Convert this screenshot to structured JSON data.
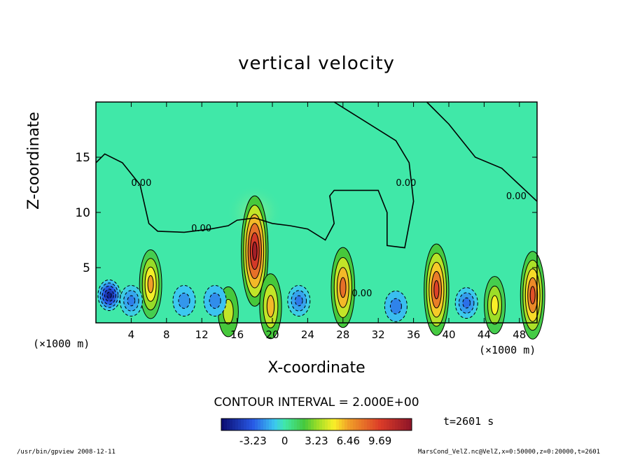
{
  "chart_data": {
    "type": "heatmap",
    "title": "vertical velocity",
    "xlabel": "X-coordinate",
    "ylabel": "Z-coordinate",
    "x_unit_label_left": "(×1000 m)",
    "x_unit_label_right": "(×1000 m)",
    "xlim": [
      0,
      50
    ],
    "ylim": [
      0,
      20
    ],
    "x_ticks": [
      4,
      8,
      12,
      16,
      20,
      24,
      28,
      32,
      36,
      40,
      44,
      48
    ],
    "y_ticks": [
      5,
      10,
      15
    ],
    "contour_interval_text": "CONTOUR INTERVAL = 2.000E+00",
    "contour_labels": [
      "0.00",
      "0.00",
      "0.00",
      "0.00",
      "0.00"
    ],
    "colorbar": {
      "tick_labels": [
        "-3.23",
        "0",
        "3.23",
        "6.46",
        "9.69"
      ],
      "tick_values": [
        -3.23,
        0,
        3.23,
        6.46,
        9.69
      ],
      "range": [
        -6.46,
        12.92
      ]
    },
    "time_label": "t=2601 s",
    "cells": [
      {
        "x": 1.5,
        "z": 2.5,
        "v": -5.5
      },
      {
        "x": 6.2,
        "z": 3.5,
        "v": 6.5
      },
      {
        "x": 18.0,
        "z": 6.5,
        "v": 12.0
      },
      {
        "x": 19.8,
        "z": 1.5,
        "v": 6.0
      },
      {
        "x": 28.0,
        "z": 3.2,
        "v": 8.0
      },
      {
        "x": 38.6,
        "z": 3.0,
        "v": 9.5
      },
      {
        "x": 45.2,
        "z": 1.6,
        "v": 5.0
      },
      {
        "x": 49.5,
        "z": 2.5,
        "v": 9.0
      },
      {
        "x": 15.0,
        "z": 1.0,
        "v": 4.0
      },
      {
        "x": 4.0,
        "z": 2.0,
        "v": -2.5
      },
      {
        "x": 10.0,
        "z": 2.0,
        "v": -2.0
      },
      {
        "x": 13.5,
        "z": 2.0,
        "v": -2.2
      },
      {
        "x": 23.0,
        "z": 2.0,
        "v": -2.6
      },
      {
        "x": 34.0,
        "z": 1.5,
        "v": -2.4
      },
      {
        "x": 42.0,
        "z": 1.8,
        "v": -2.8
      }
    ]
  },
  "footer": {
    "left": "/usr/bin/gpview   2008-12-11",
    "right": "MarsCond_VelZ.nc@VelZ,x=0:50000,z=0:20000,t=2601"
  },
  "colors": {
    "background_field": "#40e8a8",
    "frame": "#000000"
  }
}
